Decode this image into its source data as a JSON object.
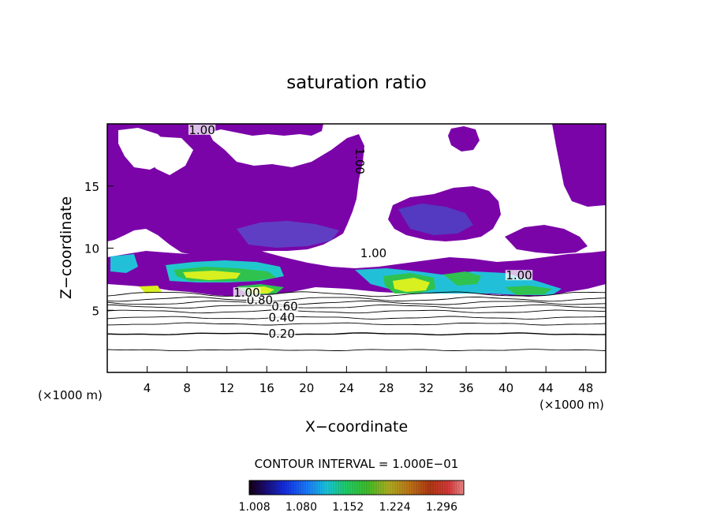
{
  "chart_data": {
    "type": "heatmap",
    "title": "saturation ratio",
    "xlabel": "X−coordinate",
    "ylabel": "Z−coordinate",
    "x_unit": "(×1000 m)",
    "z_unit": "(×1000 m)",
    "xlim": [
      0,
      50
    ],
    "ylim": [
      0,
      20
    ],
    "x_ticks": [
      4,
      8,
      12,
      16,
      20,
      24,
      28,
      32,
      36,
      40,
      44,
      48
    ],
    "y_ticks": [
      5,
      10,
      15
    ],
    "contour_interval_text": "CONTOUR INTERVAL = 1.000E−01",
    "colorbar": {
      "range": [
        1.0,
        1.33
      ],
      "tick_labels": [
        "1.008",
        "1.080",
        "1.152",
        "1.224",
        "1.296"
      ]
    },
    "contour_levels_z": [
      {
        "level": 0.1,
        "z": 1.8
      },
      {
        "level": 0.2,
        "z": 3.1
      },
      {
        "level": 0.3,
        "z": 3.9
      },
      {
        "level": 0.4,
        "z": 4.4
      },
      {
        "level": 0.5,
        "z": 4.9
      },
      {
        "level": 0.6,
        "z": 5.3
      },
      {
        "level": 0.7,
        "z": 5.6
      },
      {
        "level": 0.8,
        "z": 5.9
      },
      {
        "level": 0.9,
        "z": 6.3
      }
    ],
    "contour_labels": [
      {
        "text": "0.20",
        "x": 17.5,
        "z": 3.1
      },
      {
        "text": "0.40",
        "x": 17.5,
        "z": 4.4
      },
      {
        "text": "0.60",
        "x": 17.8,
        "z": 5.3
      },
      {
        "text": "0.80",
        "x": 15.3,
        "z": 5.8
      },
      {
        "text": "1.00",
        "x": 14.0,
        "z": 6.4
      },
      {
        "text": "1.00",
        "x": 9.5,
        "z": 19.5
      },
      {
        "text": "1.00",
        "x": 26.7,
        "z": 9.6
      },
      {
        "text": "1.00",
        "x": 41.3,
        "z": 7.8
      },
      {
        "text": "1.00",
        "x": 25.3,
        "z": 17.0,
        "rotated": true
      }
    ]
  }
}
